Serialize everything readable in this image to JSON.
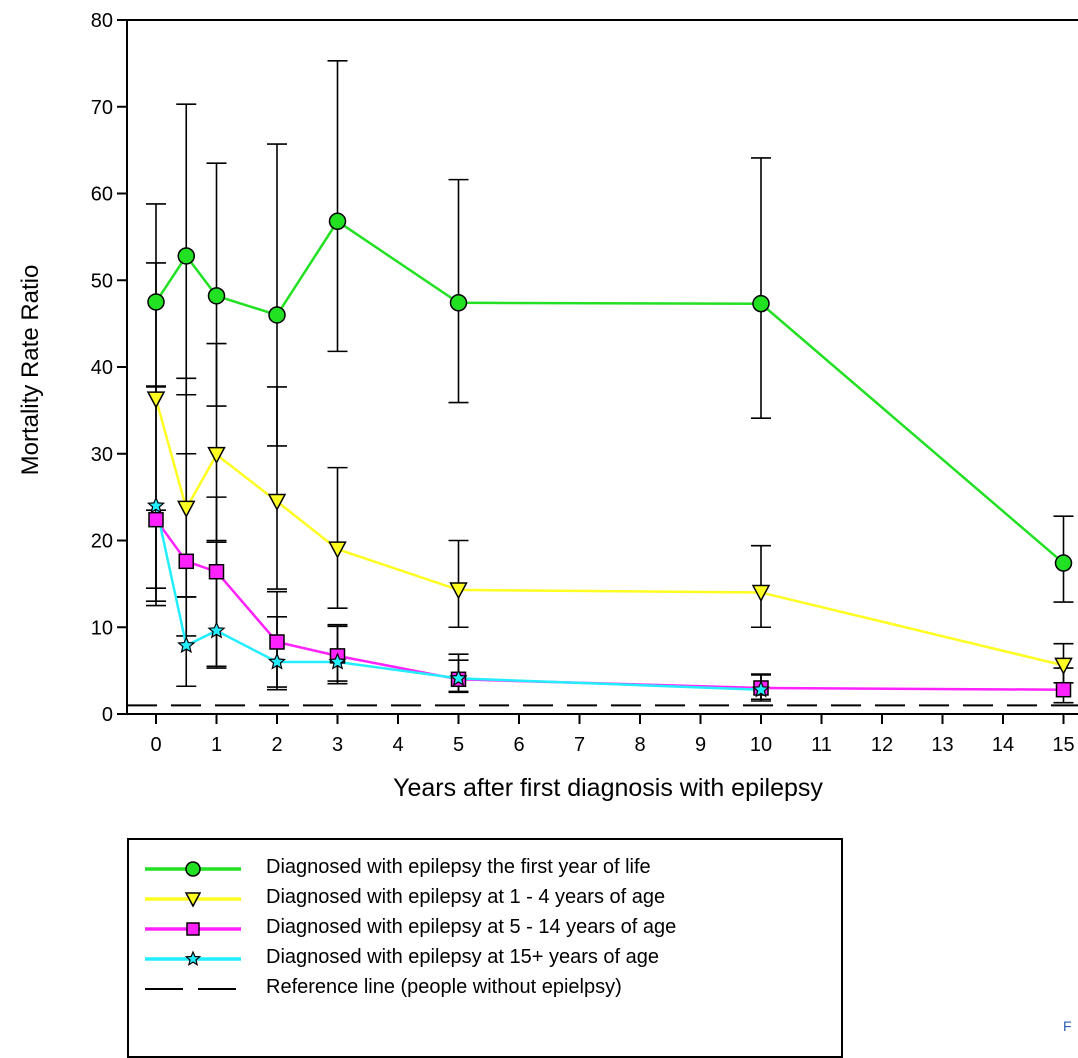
{
  "chart_data": {
    "type": "line",
    "xlabel": "Years after first diagnosis with epilepsy",
    "ylabel": "Mortality Rate Ratio",
    "xlim": [
      -0.5,
      15.2
    ],
    "ylim": [
      0,
      80
    ],
    "x_ticks": [
      0,
      1,
      2,
      3,
      4,
      5,
      6,
      7,
      8,
      9,
      10,
      11,
      12,
      13,
      14,
      15
    ],
    "y_ticks": [
      0,
      10,
      20,
      30,
      40,
      50,
      60,
      70,
      80
    ],
    "grid": false,
    "legend_position": "bottom-left",
    "reference_line": {
      "y": 1,
      "style": "dashed",
      "label": "Reference line (people without epielpsy)"
    },
    "series": [
      {
        "name": "Diagnosed with epilepsy the first year of life",
        "color": "#22e022",
        "marker": "circle",
        "marker_fill": "#22e022",
        "x": [
          0,
          0.5,
          1,
          2,
          3,
          5,
          10,
          15
        ],
        "values": [
          47.5,
          52.8,
          48.2,
          46,
          56.8,
          47.4,
          47.3,
          17.4
        ],
        "err_low": [
          37.7,
          36.8,
          35.5,
          30.9,
          41.8,
          35.9,
          34.1,
          12.9
        ],
        "err_high": [
          58.8,
          70.3,
          63.5,
          65.7,
          75.3,
          61.6,
          64.1,
          22.8
        ]
      },
      {
        "name": "Diagnosed with epilepsy at 1 - 4 years of age",
        "color": "#ffff22",
        "marker": "triangle-down",
        "marker_fill": "#ffff22",
        "x": [
          0,
          0.5,
          1,
          2,
          3,
          5,
          10,
          15
        ],
        "values": [
          36.3,
          23.7,
          29.9,
          24.5,
          19,
          14.3,
          14,
          5.6
        ],
        "err_low": [
          14.5,
          13.5,
          19.8,
          14.4,
          12.2,
          10,
          10,
          3.6
        ],
        "err_high": [
          52,
          38.7,
          42.7,
          37.7,
          28.4,
          20,
          19.4,
          8.1
        ]
      },
      {
        "name": "Diagnosed with epilepsy at 5 - 14 years of age",
        "color": "#ff22ff",
        "marker": "square",
        "marker_fill": "#ff22ff",
        "x": [
          0,
          0.5,
          1,
          2,
          3,
          5,
          10,
          15
        ],
        "values": [
          22.4,
          17.6,
          16.4,
          8.3,
          6.7,
          4,
          3,
          2.8
        ],
        "err_low": [
          13,
          9,
          5.3,
          3.1,
          3.5,
          2.5,
          1.7,
          1.3
        ],
        "err_high": [
          37.8,
          30,
          25,
          14.1,
          10.3,
          6.9,
          4.6,
          5.3
        ]
      },
      {
        "name": "Diagnosed with epilepsy at 15+ years of age",
        "color": "#22eeff",
        "marker": "star",
        "marker_fill": "#22eeff",
        "x": [
          0,
          0.5,
          1,
          2,
          3,
          5,
          10,
          15
        ],
        "values": [
          24,
          7.9,
          9.6,
          6,
          6,
          4.1,
          2.8,
          null
        ],
        "err_low": [
          12.5,
          3.2,
          5.5,
          2.8,
          3.8,
          2.6,
          1.5,
          null
        ],
        "err_high": [
          23.5,
          13.5,
          20,
          11.2,
          10.1,
          6.2,
          4.5,
          null
        ]
      }
    ]
  },
  "legend": {
    "items": [
      {
        "label": "Diagnosed with epilepsy the first year of life",
        "color": "#22e022",
        "marker": "circle"
      },
      {
        "label": "Diagnosed with epilepsy at 1 - 4 years of age",
        "color": "#ffff22",
        "marker": "triangle-down"
      },
      {
        "label": "Diagnosed with epilepsy at 5 - 14 years of age",
        "color": "#ff22ff",
        "marker": "square"
      },
      {
        "label": "Diagnosed with epilepsy at 15+ years of age",
        "color": "#22eeff",
        "marker": "star"
      },
      {
        "label": "Reference line (people without epielpsy)",
        "color": "#000000",
        "marker": "dashed"
      }
    ]
  },
  "corner_fragment": "F"
}
